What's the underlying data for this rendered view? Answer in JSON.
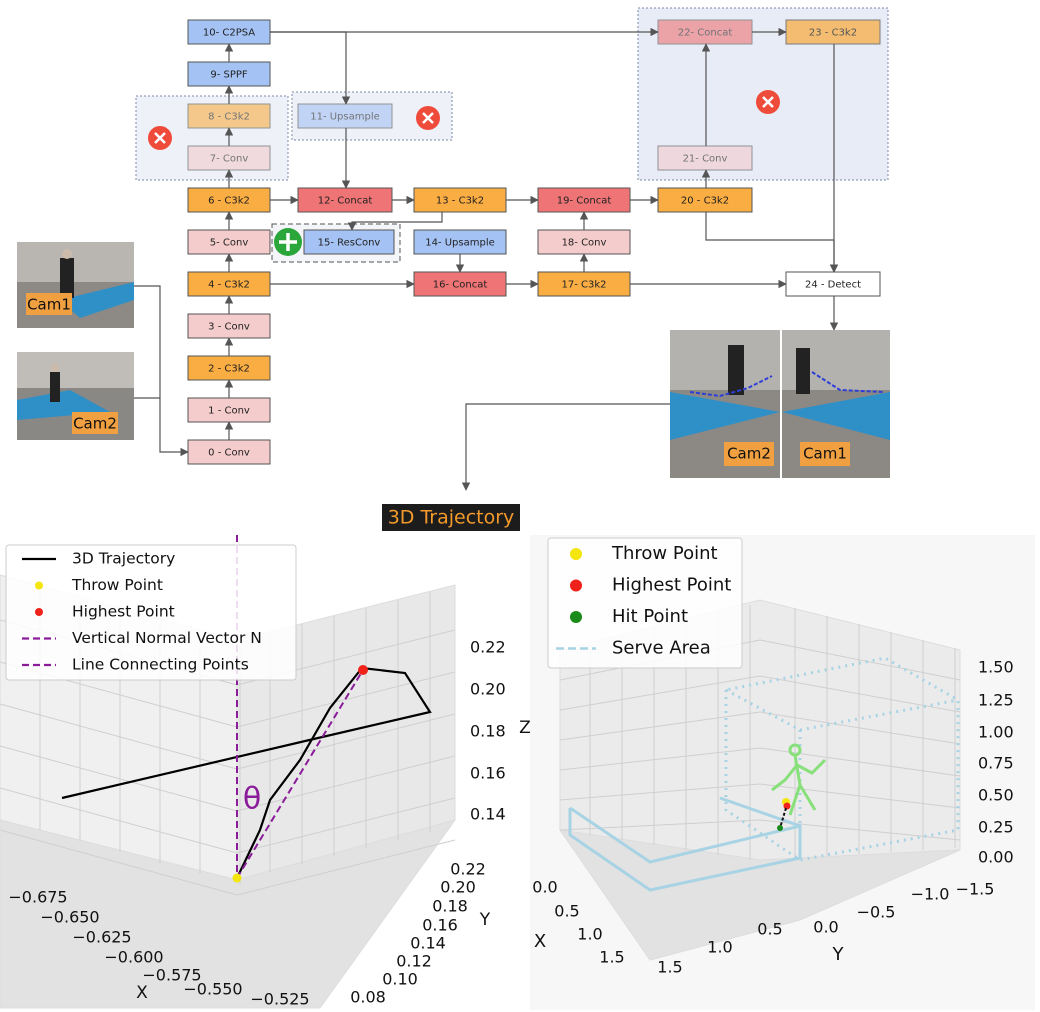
{
  "diagram": {
    "nodes": [
      "0 - Conv",
      "1 - Conv",
      "2 - C3k2",
      "3 - Conv",
      "4 - C3k2",
      "5- Conv",
      "6 - C3k2",
      "7- Conv",
      "8 - C3k2",
      "9- SPPF",
      "10- C2PSA",
      "11- Upsample",
      "12- Concat",
      "13 - C3k2",
      "14- Upsample",
      "15- ResConv",
      "16- Concat",
      "17- C3k2",
      "18- Conv",
      "19- Concat",
      "20 - C3k2",
      "21- Conv",
      "22- Concat",
      "23 - C3k2",
      "24 - Detect"
    ],
    "camera_labels": [
      "Cam1",
      "Cam2",
      "Cam2",
      "Cam1"
    ],
    "output_label": "3D Trajectory"
  },
  "left_plot": {
    "legend": [
      "3D Trajectory",
      "Throw Point",
      "Highest Point",
      "Vertical Normal Vector N",
      "Line Connecting Points"
    ],
    "theta": "θ",
    "x_label": "X",
    "y_label": "Y",
    "z_label": "Z",
    "x_ticks": [
      "−0.675",
      "−0.650",
      "−0.625",
      "−0.600",
      "−0.575",
      "−0.550",
      "−0.525"
    ],
    "y_ticks": [
      "0.22",
      "0.20",
      "0.18",
      "0.16",
      "0.14",
      "0.12",
      "0.10",
      "0.08"
    ],
    "z_ticks": [
      "0.22",
      "0.20",
      "0.18",
      "0.16",
      "0.14"
    ]
  },
  "right_plot": {
    "legend": [
      "Throw Point",
      "Highest Point",
      "Hit Point",
      "Serve Area"
    ],
    "x_label": "X",
    "y_label": "Y",
    "x_ticks": [
      "0.0",
      "0.5",
      "1.0",
      "1.5"
    ],
    "y_ticks": [
      "1.5",
      "1.0",
      "0.5",
      "0.0",
      "−0.5",
      "−1.0",
      "−1.5"
    ],
    "z_ticks": [
      "1.50",
      "1.25",
      "1.00",
      "0.75",
      "0.50",
      "0.25",
      "0.00"
    ]
  }
}
